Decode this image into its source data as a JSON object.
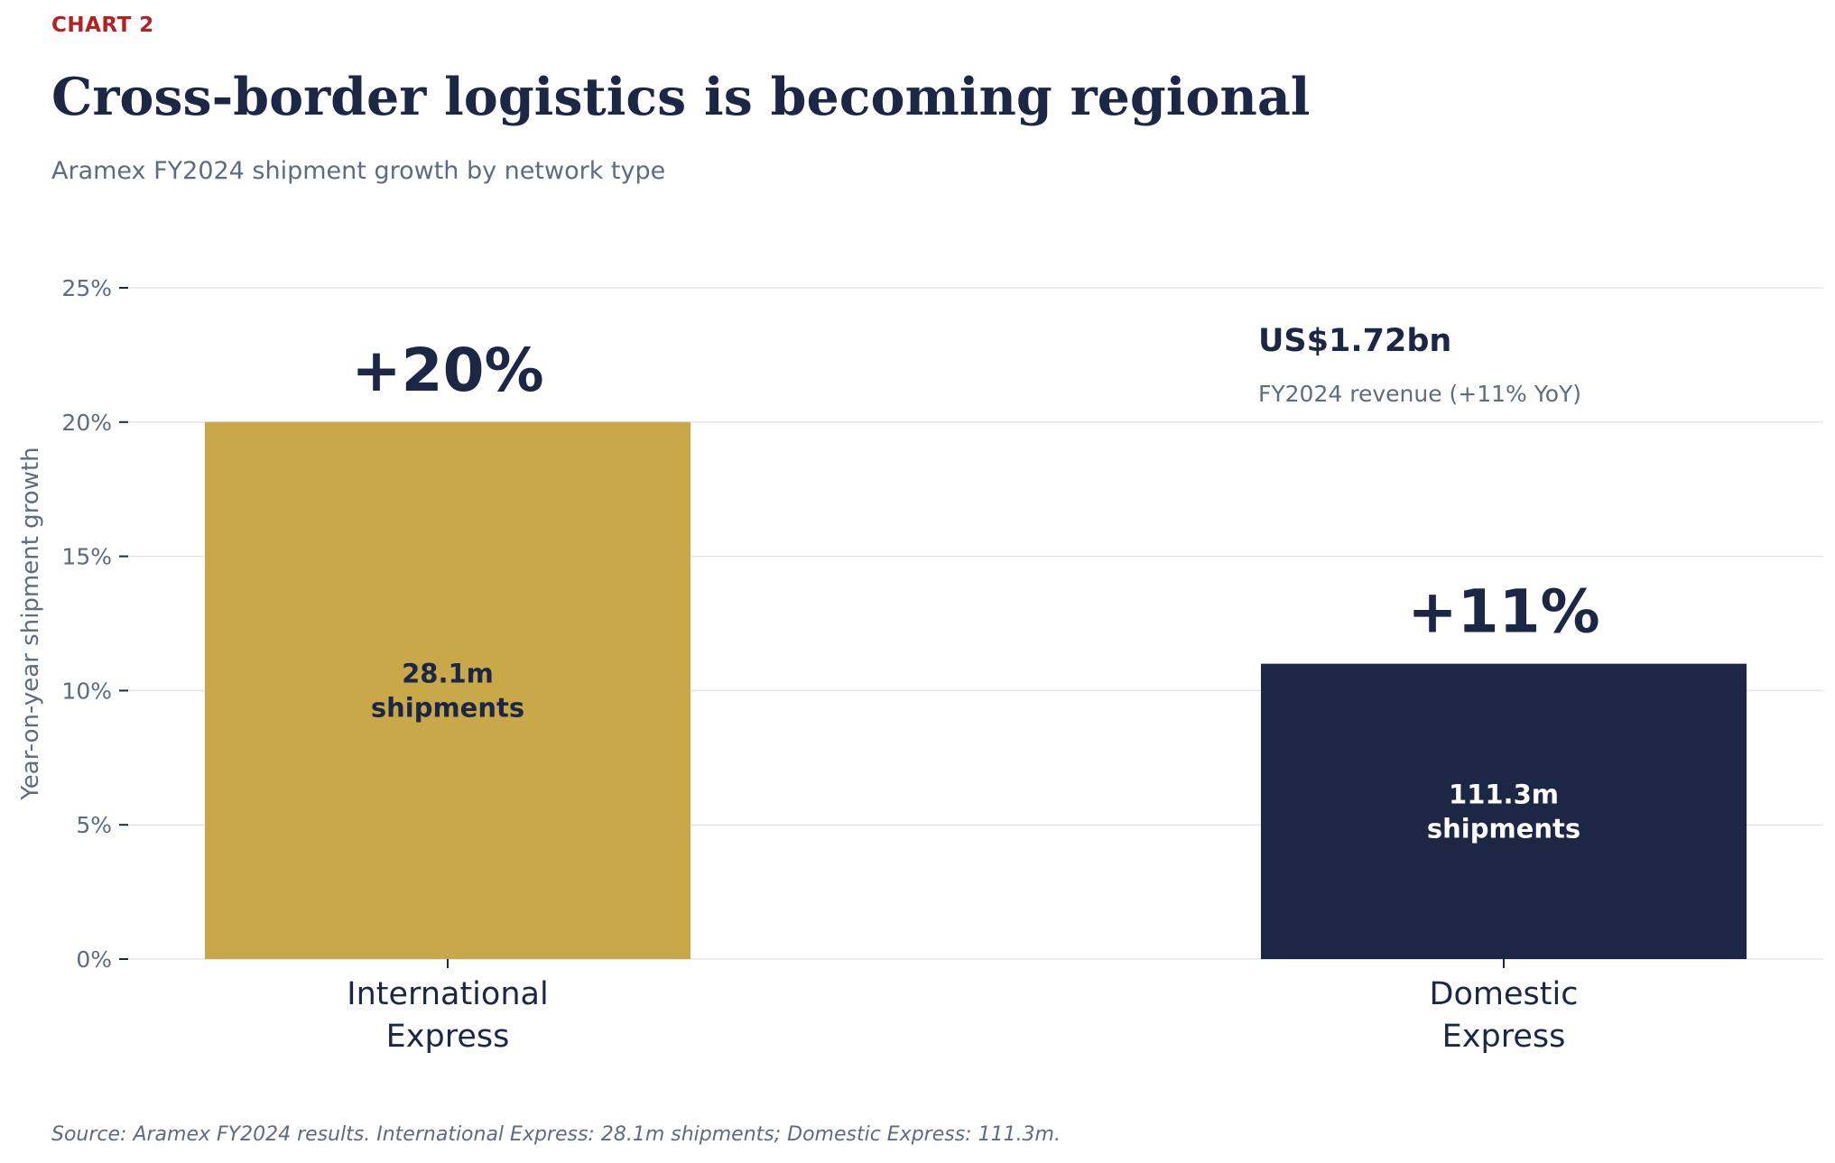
{
  "header": {
    "kicker": "CHART 2",
    "title": "Cross-border logistics is becoming regional",
    "subtitle": "Aramex FY2024 shipment growth by network type"
  },
  "callout": {
    "value": "US$1.72bn",
    "label": "FY2024 revenue (+11% YoY)"
  },
  "source": "Source: Aramex FY2024 results. International Express: 28.1m shipments; Domestic Express: 111.3m.",
  "chart_data": {
    "type": "bar",
    "categories": [
      [
        "International",
        "Express"
      ],
      [
        "Domestic",
        "Express"
      ]
    ],
    "values": [
      20,
      11
    ],
    "value_labels": [
      "+20%",
      "+11%"
    ],
    "bar_labels": [
      [
        "28.1m",
        "shipments"
      ],
      [
        "111.3m",
        "shipments"
      ]
    ],
    "colors": [
      "#c9a84a",
      "#1b2744"
    ],
    "bar_label_colors": [
      "#1b2744",
      "#ffffff"
    ],
    "ylabel": "Year-on-year shipment growth",
    "ylim": [
      0,
      25
    ],
    "yticks": [
      0,
      5,
      10,
      15,
      20,
      25
    ],
    "ytick_labels": [
      "0%",
      "5%",
      "10%",
      "15%",
      "20%",
      "25%"
    ],
    "grid": true
  }
}
